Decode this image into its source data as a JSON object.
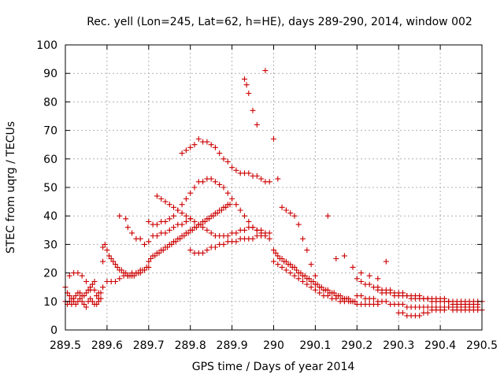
{
  "chart_data": {
    "type": "scatter",
    "title": "Rec. yell (Lon=245, Lat=62, h=HE), days 289-290, 2014, window 002",
    "xlabel": "GPS time / Days of year 2014",
    "ylabel": "STEC from uqrg / TECUs",
    "xlim": [
      289.5,
      290.5
    ],
    "ylim": [
      0,
      100
    ],
    "x_ticks": [
      289.5,
      289.6,
      289.7,
      289.8,
      289.9,
      290.0,
      290.1,
      290.2,
      290.3,
      290.4,
      290.5
    ],
    "x_tick_labels": [
      "289.5",
      "289.6",
      "289.7",
      "289.8",
      "289.9",
      "290",
      "290.1",
      "290.2",
      "290.3",
      "290.4",
      "290.5"
    ],
    "y_ticks": [
      0,
      10,
      20,
      30,
      40,
      50,
      60,
      70,
      80,
      90,
      100
    ],
    "y_tick_labels": [
      "0",
      "10",
      "20",
      "30",
      "40",
      "50",
      "60",
      "70",
      "80",
      "90",
      "100"
    ],
    "grid": true,
    "grid_style": "dotted",
    "marker": "+",
    "marker_color": "#cc0000",
    "series": [
      {
        "x": [
          289.5,
          289.505,
          289.51,
          289.515,
          289.52,
          289.525,
          289.53,
          289.535,
          289.54,
          289.545,
          289.55,
          289.555,
          289.56,
          289.565,
          289.57,
          289.575,
          289.58,
          289.585,
          289.5,
          289.505,
          289.51,
          289.515,
          289.52,
          289.525,
          289.53,
          289.535,
          289.54,
          289.545,
          289.55,
          289.555,
          289.56,
          289.565,
          289.57,
          289.575,
          289.58,
          289.585,
          289.51,
          289.52,
          289.53,
          289.54,
          289.55,
          289.56,
          289.57,
          289.58,
          289.59,
          289.59,
          289.595,
          289.6,
          289.605,
          289.61,
          289.615,
          289.62,
          289.625,
          289.63,
          289.635,
          289.64,
          289.645,
          289.65,
          289.655,
          289.66,
          289.665,
          289.67,
          289.675,
          289.68,
          289.685,
          289.69,
          289.695,
          289.59,
          289.6,
          289.61,
          289.62,
          289.63,
          289.64,
          289.65,
          289.66,
          289.67,
          289.68,
          289.69,
          289.7,
          289.63,
          289.645,
          289.65,
          289.66,
          289.67,
          289.68,
          289.69,
          289.7,
          289.71,
          289.72,
          289.73,
          289.74,
          289.75,
          289.76,
          289.77,
          289.78,
          289.79,
          289.8,
          289.7,
          289.705,
          289.71,
          289.715,
          289.72,
          289.725,
          289.73,
          289.735,
          289.74,
          289.745,
          289.75,
          289.755,
          289.76,
          289.765,
          289.77,
          289.775,
          289.78,
          289.785,
          289.79,
          289.795,
          289.8,
          289.805,
          289.81,
          289.815,
          289.82,
          289.825,
          289.83,
          289.835,
          289.84,
          289.845,
          289.85,
          289.855,
          289.86,
          289.865,
          289.87,
          289.875,
          289.88,
          289.885,
          289.89,
          289.895,
          289.7,
          289.71,
          289.72,
          289.73,
          289.74,
          289.75,
          289.76,
          289.77,
          289.78,
          289.79,
          289.8,
          289.81,
          289.82,
          289.83,
          289.84,
          289.85,
          289.86,
          289.87,
          289.88,
          289.89,
          289.9,
          289.91,
          289.92,
          289.93,
          289.94,
          289.95,
          289.96,
          289.97,
          289.98,
          289.99,
          289.72,
          289.73,
          289.74,
          289.75,
          289.76,
          289.77,
          289.78,
          289.79,
          289.8,
          289.81,
          289.82,
          289.83,
          289.84,
          289.85,
          289.86,
          289.87,
          289.88,
          289.89,
          289.9,
          289.91,
          289.92,
          289.93,
          289.94,
          289.95,
          289.96,
          289.97,
          289.98,
          289.78,
          289.79,
          289.8,
          289.81,
          289.82,
          289.83,
          289.84,
          289.85,
          289.86,
          289.87,
          289.88,
          289.89,
          289.9,
          289.91,
          289.92,
          289.93,
          289.94,
          289.95,
          289.96,
          289.97,
          289.98,
          289.99,
          289.8,
          289.81,
          289.82,
          289.83,
          289.84,
          289.85,
          289.86,
          289.87,
          289.88,
          289.89,
          289.9,
          289.91,
          289.92,
          289.93,
          289.94,
          289.95,
          289.96,
          289.97,
          289.98,
          289.99,
          289.93,
          289.935,
          289.94,
          289.95,
          289.96,
          289.98,
          290.0,
          290.01,
          290.02,
          290.03,
          290.04,
          290.05,
          290.06,
          290.07,
          290.08,
          290.09,
          290.1,
          290.0,
          290.005,
          290.01,
          290.015,
          290.02,
          290.025,
          290.03,
          290.035,
          290.04,
          290.045,
          290.05,
          290.055,
          290.06,
          290.065,
          290.07,
          290.075,
          290.08,
          290.085,
          290.09,
          290.095,
          290.1,
          290.105,
          290.11,
          290.115,
          290.12,
          290.125,
          290.13,
          290.135,
          290.14,
          290.145,
          290.15,
          290.155,
          290.16,
          290.165,
          290.17,
          290.175,
          290.18,
          290.185,
          290.19,
          290.195,
          290.0,
          290.01,
          290.02,
          290.03,
          290.04,
          290.05,
          290.06,
          290.07,
          290.08,
          290.09,
          290.1,
          290.11,
          290.12,
          290.13,
          290.14,
          290.15,
          290.16,
          290.17,
          290.18,
          290.19,
          290.2,
          290.21,
          290.22,
          290.23,
          290.24,
          290.25,
          290.13,
          290.15,
          290.17,
          290.19,
          290.21,
          290.23,
          290.25,
          290.27,
          290.2,
          290.21,
          290.22,
          290.23,
          290.24,
          290.25,
          290.26,
          290.27,
          290.28,
          290.29,
          290.3,
          290.31,
          290.32,
          290.33,
          290.34,
          290.35,
          290.36,
          290.37,
          290.38,
          290.39,
          290.4,
          290.41,
          290.42,
          290.43,
          290.44,
          290.45,
          290.46,
          290.47,
          290.48,
          290.49,
          290.5,
          290.2,
          290.21,
          290.22,
          290.23,
          290.24,
          290.25,
          290.26,
          290.27,
          290.28,
          290.29,
          290.3,
          290.31,
          290.32,
          290.33,
          290.34,
          290.35,
          290.36,
          290.37,
          290.38,
          290.39,
          290.4,
          290.41,
          290.42,
          290.43,
          290.44,
          290.45,
          290.46,
          290.47,
          290.48,
          290.49,
          290.5,
          290.25,
          290.26,
          290.27,
          290.28,
          290.29,
          290.3,
          290.31,
          290.32,
          290.33,
          290.34,
          290.35,
          290.36,
          290.37,
          290.38,
          290.39,
          290.4,
          290.41,
          290.42,
          290.43,
          290.44,
          290.45,
          290.46,
          290.47,
          290.48,
          290.49,
          290.3,
          290.31,
          290.32,
          290.33,
          290.34,
          290.35,
          290.36,
          290.37,
          290.38,
          290.39,
          290.4,
          290.41,
          290.42,
          290.43,
          290.44,
          290.45,
          290.46,
          290.47,
          290.48,
          290.49
        ],
        "y": [
          15,
          13,
          12,
          11,
          11,
          12,
          13,
          13,
          12,
          12,
          13,
          14,
          15,
          16,
          14,
          12,
          11,
          13,
          10,
          9,
          10,
          9,
          10,
          9,
          10,
          11,
          10,
          9,
          8,
          10,
          11,
          10,
          9,
          9,
          10,
          11,
          19,
          20,
          20,
          19,
          17,
          14,
          17,
          13,
          24,
          29,
          30,
          28,
          26,
          25,
          24,
          23,
          22,
          21,
          21,
          20,
          20,
          19,
          19,
          19,
          19,
          20,
          20,
          20,
          21,
          21,
          22,
          15,
          17,
          17,
          17,
          18,
          19,
          19,
          20,
          20,
          21,
          21,
          22,
          40,
          39,
          36,
          34,
          32,
          32,
          30,
          31,
          33,
          33,
          34,
          34,
          35,
          36,
          37,
          37,
          38,
          39,
          24,
          25,
          26,
          26,
          27,
          27,
          28,
          28,
          29,
          29,
          30,
          30,
          31,
          31,
          32,
          32,
          33,
          33,
          34,
          34,
          35,
          35,
          36,
          36,
          37,
          37,
          38,
          38,
          39,
          39,
          40,
          40,
          41,
          41,
          42,
          42,
          43,
          43,
          44,
          44,
          38,
          37,
          37,
          38,
          38,
          39,
          40,
          42,
          44,
          46,
          48,
          50,
          52,
          52,
          53,
          53,
          52,
          51,
          50,
          48,
          46,
          44,
          42,
          40,
          38,
          36,
          35,
          34,
          33,
          32,
          47,
          46,
          45,
          44,
          43,
          42,
          41,
          40,
          39,
          38,
          37,
          36,
          35,
          34,
          33,
          33,
          33,
          33,
          34,
          34,
          35,
          35,
          36,
          36,
          35,
          35,
          34,
          62,
          63,
          64,
          65,
          67,
          66,
          66,
          65,
          64,
          62,
          60,
          59,
          57,
          56,
          55,
          55,
          55,
          54,
          54,
          53,
          52,
          52,
          28,
          27,
          27,
          27,
          28,
          29,
          29,
          30,
          30,
          31,
          31,
          31,
          32,
          32,
          32,
          32,
          33,
          33,
          33,
          34,
          88,
          86,
          83,
          77,
          72,
          91,
          67,
          53,
          43,
          42,
          41,
          40,
          37,
          32,
          28,
          23,
          19,
          28,
          27,
          26,
          25,
          25,
          24,
          24,
          23,
          23,
          22,
          22,
          21,
          20,
          20,
          19,
          19,
          18,
          18,
          17,
          17,
          16,
          16,
          15,
          15,
          14,
          14,
          14,
          13,
          13,
          13,
          12,
          12,
          12,
          11,
          11,
          11,
          11,
          10,
          10,
          10,
          24,
          23,
          22,
          21,
          20,
          19,
          18,
          17,
          16,
          15,
          14,
          13,
          12,
          12,
          11,
          11,
          10,
          10,
          10,
          10,
          9,
          9,
          9,
          9,
          9,
          9,
          40,
          25,
          26,
          22,
          20,
          19,
          18,
          24,
          18,
          17,
          16,
          16,
          15,
          15,
          14,
          14,
          14,
          13,
          13,
          13,
          12,
          12,
          12,
          12,
          11,
          11,
          11,
          11,
          11,
          11,
          10,
          10,
          10,
          10,
          10,
          10,
          10,
          10,
          10,
          12,
          12,
          11,
          11,
          11,
          10,
          10,
          10,
          9,
          9,
          9,
          9,
          8,
          8,
          8,
          8,
          8,
          8,
          8,
          8,
          8,
          8,
          8,
          7,
          7,
          7,
          7,
          7,
          7,
          7,
          7,
          14,
          13,
          13,
          13,
          12,
          12,
          12,
          12,
          11,
          11,
          11,
          11,
          11,
          10,
          10,
          10,
          10,
          10,
          9,
          9,
          9,
          9,
          9,
          9,
          9,
          6,
          6,
          5,
          5,
          5,
          5,
          6,
          6,
          7,
          7,
          7,
          7,
          8,
          8,
          8,
          8,
          8,
          8,
          8,
          8
        ]
      }
    ]
  }
}
